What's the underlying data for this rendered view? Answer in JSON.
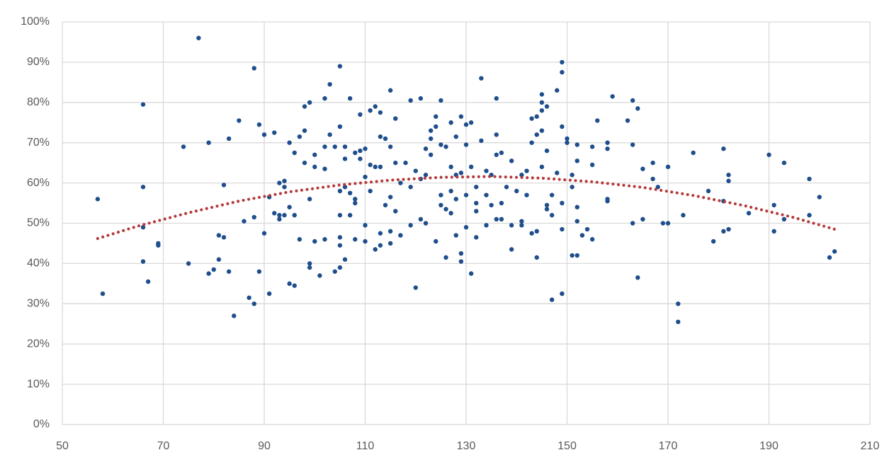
{
  "chart_data": {
    "type": "scatter",
    "grid": true,
    "xlim": [
      50,
      210
    ],
    "xticks": [
      50,
      70,
      90,
      110,
      130,
      150,
      170,
      190,
      210
    ],
    "ylim": [
      0,
      100
    ],
    "yticks": [
      {
        "value": 0,
        "label": "0%"
      },
      {
        "value": 10,
        "label": "10%"
      },
      {
        "value": 20,
        "label": "20%"
      },
      {
        "value": 30,
        "label": "30%"
      },
      {
        "value": 40,
        "label": "40%"
      },
      {
        "value": 50,
        "label": "50%"
      },
      {
        "value": 60,
        "label": "60%"
      },
      {
        "value": 70,
        "label": "70%"
      },
      {
        "value": 80,
        "label": "80%"
      },
      {
        "value": 90,
        "label": "90%"
      },
      {
        "value": 100,
        "label": "100%"
      }
    ],
    "series": [
      {
        "mode": "markers",
        "color": "#1f4e8c",
        "x": [
          57,
          58,
          66,
          66,
          66,
          66,
          67,
          69,
          69,
          74,
          75,
          77,
          79,
          79,
          80,
          81,
          81,
          82,
          82,
          83,
          83,
          84,
          85,
          86,
          87,
          88,
          88,
          88,
          89,
          89,
          90,
          90,
          91,
          91,
          92,
          92,
          93,
          93,
          93,
          94,
          94,
          94,
          95,
          95,
          95,
          96,
          96,
          96,
          97,
          97,
          98,
          98,
          98,
          99,
          99,
          99,
          99,
          100,
          100,
          100,
          101,
          102,
          102,
          102,
          102,
          103,
          103,
          104,
          104,
          105,
          105,
          105,
          105,
          105,
          105,
          105,
          106,
          106,
          106,
          106,
          107,
          107,
          107,
          108,
          108,
          108,
          108,
          109,
          109,
          109,
          110,
          110,
          110,
          110,
          111,
          111,
          111,
          112,
          112,
          112,
          113,
          113,
          113,
          113,
          113,
          114,
          114,
          115,
          115,
          115,
          115,
          115,
          116,
          116,
          116,
          117,
          117,
          118,
          119,
          119,
          119,
          120,
          120,
          121,
          121,
          121,
          122,
          122,
          122,
          123,
          123,
          123,
          124,
          124,
          124,
          125,
          125,
          125,
          125,
          126,
          126,
          126,
          127,
          127,
          127,
          127,
          128,
          128,
          128,
          128,
          129,
          129,
          129,
          129,
          130,
          130,
          130,
          130,
          131,
          131,
          131,
          132,
          132,
          132,
          132,
          133,
          133,
          134,
          134,
          134,
          135,
          135,
          136,
          136,
          136,
          136,
          137,
          137,
          137,
          138,
          139,
          139,
          139,
          140,
          141,
          141,
          141,
          142,
          142,
          143,
          143,
          143,
          144,
          144,
          144,
          144,
          145,
          145,
          145,
          145,
          145,
          146,
          146,
          146,
          146,
          147,
          147,
          147,
          148,
          148,
          149,
          149,
          149,
          149,
          149,
          149,
          150,
          150,
          151,
          151,
          151,
          152,
          152,
          152,
          152,
          152,
          153,
          154,
          155,
          155,
          155,
          156,
          158,
          158,
          158,
          158,
          159,
          162,
          163,
          163,
          163,
          164,
          164,
          165,
          165,
          167,
          167,
          168,
          169,
          170,
          170,
          172,
          172,
          173,
          175,
          178,
          179,
          181,
          181,
          181,
          182,
          182,
          182,
          186,
          190,
          191,
          191,
          193,
          193,
          198,
          198,
          200,
          202,
          203
        ],
        "values": [
          56,
          32.5,
          79.5,
          59,
          49,
          40.5,
          35.5,
          45,
          44.5,
          69,
          40,
          96,
          70,
          37.5,
          38.5,
          47,
          41,
          59.5,
          46.5,
          71,
          38,
          27,
          75.5,
          50.5,
          31.5,
          88.5,
          51.5,
          30,
          74.5,
          38,
          72,
          47.5,
          56.5,
          32.5,
          72.5,
          52.5,
          60,
          52,
          51,
          60.5,
          59,
          52,
          70,
          54,
          35,
          67.5,
          52,
          34.5,
          71.5,
          46,
          79,
          73,
          65,
          80,
          56,
          40,
          39,
          67,
          64,
          45.5,
          37,
          81,
          69,
          63.5,
          46,
          84.5,
          72,
          69,
          38,
          89,
          74,
          58,
          52,
          46.5,
          44.5,
          39,
          69,
          66,
          59,
          41,
          81,
          57.5,
          52,
          67.5,
          56,
          55,
          46,
          77,
          68,
          66,
          68.5,
          61.5,
          49.5,
          45.5,
          78,
          64.5,
          58,
          79,
          64,
          43.5,
          77.5,
          71.5,
          64,
          47.5,
          44.5,
          71,
          54.5,
          83,
          69,
          56.5,
          48,
          45,
          76,
          65,
          53,
          60,
          47,
          65,
          80.5,
          59,
          49.5,
          63,
          34,
          81,
          61,
          51,
          68.5,
          62,
          50,
          73,
          71,
          67,
          76.5,
          74,
          45.5,
          80.5,
          69.5,
          57,
          54.5,
          69,
          53.5,
          41.5,
          75,
          64,
          58,
          52.5,
          71.5,
          62,
          56,
          47,
          76.5,
          62.5,
          42.5,
          40.5,
          74.5,
          69.5,
          57,
          49,
          75,
          64,
          37.5,
          59,
          55,
          53,
          46.5,
          86,
          70.5,
          63,
          57,
          49.5,
          62,
          54.5,
          81,
          72,
          67,
          51,
          67.5,
          55,
          51,
          59,
          65.5,
          49.5,
          43.5,
          58,
          62,
          50.5,
          49.5,
          63,
          57,
          76,
          70,
          47.5,
          76.5,
          72,
          48,
          41.5,
          82,
          80,
          78,
          73,
          64,
          79,
          68,
          54.5,
          53.5,
          57,
          52,
          31,
          83,
          62.5,
          90,
          87.5,
          74,
          55,
          48.5,
          32.5,
          71,
          70,
          62,
          59,
          42,
          69.5,
          65.5,
          54,
          50.5,
          42,
          47,
          48.5,
          69,
          64.5,
          46,
          75.5,
          70,
          68.5,
          56,
          55.5,
          81.5,
          75.5,
          80.5,
          69.5,
          50,
          78.5,
          36.5,
          63.5,
          51,
          65,
          61,
          59,
          50,
          64,
          50,
          30,
          25.5,
          52,
          67.5,
          58,
          45.5,
          68.5,
          55.5,
          48,
          62,
          60.5,
          48.5,
          52.5,
          67,
          54.5,
          48,
          65,
          51,
          61,
          52,
          56.5,
          41.5,
          43
        ]
      },
      {
        "mode": "dotted-line",
        "color": "#b5393b",
        "x": [
          57,
          65,
          75,
          85,
          95,
          105,
          115,
          125,
          135,
          145,
          155,
          165,
          175,
          185,
          195,
          203
        ],
        "values": [
          46.2,
          49.3,
          52.6,
          55.5,
          57.8,
          59.5,
          60.7,
          61.4,
          61.6,
          61.2,
          60.3,
          58.9,
          56.9,
          54.4,
          51.4,
          48.5
        ]
      }
    ]
  }
}
